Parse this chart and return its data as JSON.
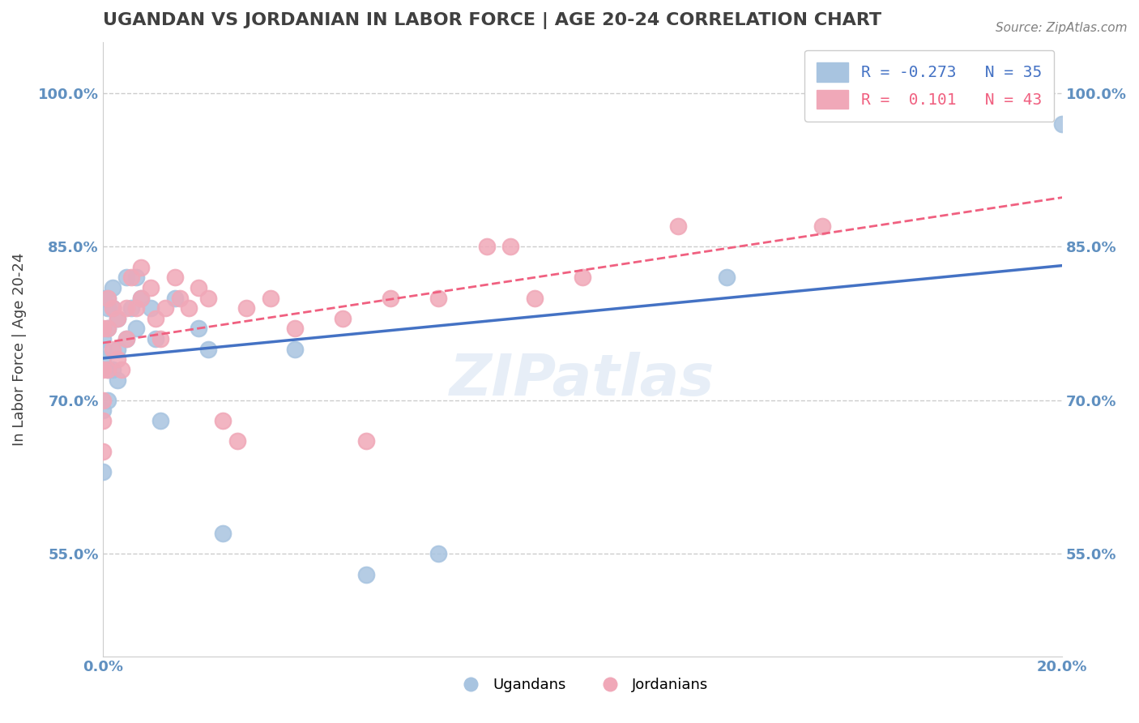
{
  "title": "UGANDAN VS JORDANIAN IN LABOR FORCE | AGE 20-24 CORRELATION CHART",
  "source_text": "Source: ZipAtlas.com",
  "xlabel": "",
  "ylabel": "In Labor Force | Age 20-24",
  "xlim": [
    0.0,
    0.2
  ],
  "ylim": [
    0.45,
    1.05
  ],
  "yticks": [
    0.55,
    0.7,
    0.85,
    1.0
  ],
  "ytick_labels": [
    "55.0%",
    "70.0%",
    "85.0%",
    "100.0%"
  ],
  "xticks": [
    0.0,
    0.2
  ],
  "xtick_labels": [
    "0.0%",
    "20.0%"
  ],
  "ugandan_R": -0.273,
  "ugandan_N": 35,
  "jordanian_R": 0.101,
  "jordanian_N": 43,
  "ugandan_color": "#a8c4e0",
  "jordanian_color": "#f0a8b8",
  "ugandan_line_color": "#4472c4",
  "jordanian_line_color": "#f06080",
  "watermark": "ZIPatlas",
  "ugandan_x": [
    0.0,
    0.0,
    0.0,
    0.0,
    0.0,
    0.0,
    0.001,
    0.001,
    0.001,
    0.001,
    0.001,
    0.002,
    0.002,
    0.002,
    0.003,
    0.003,
    0.003,
    0.005,
    0.005,
    0.006,
    0.007,
    0.007,
    0.008,
    0.01,
    0.011,
    0.012,
    0.015,
    0.02,
    0.022,
    0.025,
    0.04,
    0.055,
    0.07,
    0.13,
    0.2
  ],
  "ugandan_y": [
    0.75,
    0.8,
    0.76,
    0.74,
    0.69,
    0.63,
    0.79,
    0.8,
    0.77,
    0.73,
    0.7,
    0.81,
    0.79,
    0.73,
    0.78,
    0.75,
    0.72,
    0.76,
    0.82,
    0.79,
    0.82,
    0.77,
    0.8,
    0.79,
    0.76,
    0.68,
    0.8,
    0.77,
    0.75,
    0.57,
    0.75,
    0.53,
    0.55,
    0.82,
    0.97
  ],
  "jordanian_x": [
    0.0,
    0.0,
    0.0,
    0.0,
    0.0,
    0.001,
    0.001,
    0.001,
    0.002,
    0.002,
    0.003,
    0.003,
    0.004,
    0.005,
    0.005,
    0.006,
    0.007,
    0.008,
    0.008,
    0.01,
    0.011,
    0.012,
    0.013,
    0.015,
    0.016,
    0.018,
    0.02,
    0.022,
    0.025,
    0.028,
    0.03,
    0.035,
    0.04,
    0.05,
    0.055,
    0.06,
    0.07,
    0.08,
    0.085,
    0.09,
    0.1,
    0.12,
    0.15
  ],
  "jordanian_y": [
    0.77,
    0.73,
    0.7,
    0.68,
    0.65,
    0.8,
    0.77,
    0.73,
    0.79,
    0.75,
    0.78,
    0.74,
    0.73,
    0.79,
    0.76,
    0.82,
    0.79,
    0.83,
    0.8,
    0.81,
    0.78,
    0.76,
    0.79,
    0.82,
    0.8,
    0.79,
    0.81,
    0.8,
    0.68,
    0.66,
    0.79,
    0.8,
    0.77,
    0.78,
    0.66,
    0.8,
    0.8,
    0.85,
    0.85,
    0.8,
    0.82,
    0.87,
    0.87
  ],
  "background_color": "#ffffff",
  "grid_color": "#cccccc",
  "title_color": "#404040",
  "axis_label_color": "#404040",
  "tick_label_color": "#6090c0"
}
